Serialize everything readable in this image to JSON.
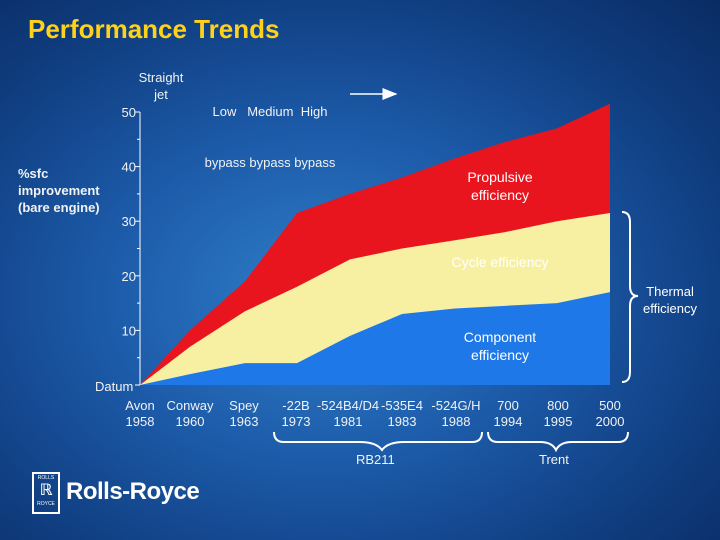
{
  "title": "Performance Trends",
  "y_axis_label": [
    "%sfc",
    "improvement",
    "(bare engine)"
  ],
  "era_labels": {
    "straight": [
      "Straight",
      "jet"
    ],
    "bypass_top": "Low   Medium  High",
    "bypass_bottom": "bypass bypass bypass"
  },
  "area_labels": {
    "propulsive": [
      "Propulsive",
      "efficiency"
    ],
    "cycle": "Cycle efficiency",
    "component": [
      "Component",
      "efficiency"
    ],
    "thermal": [
      "Thermal",
      "efficiency"
    ]
  },
  "datum_label": "Datum",
  "engine_groups": {
    "rb211": "RB211",
    "trent": "Trent"
  },
  "logo": {
    "text": "Rolls-Royce",
    "badge_text": [
      "ROLLS",
      "ROYCE"
    ]
  },
  "chart_data": {
    "type": "area",
    "title": "Performance Trends",
    "ylabel": "%sfc improvement (bare engine)",
    "ylim": [
      0,
      50
    ],
    "yticks": [
      10,
      20,
      30,
      40,
      50
    ],
    "stacked": true,
    "categories": [
      {
        "engine": "Avon",
        "year": "1958"
      },
      {
        "engine": "Conway",
        "year": "1960"
      },
      {
        "engine": "Spey",
        "year": "1963"
      },
      {
        "engine": "-22B",
        "year": "1973"
      },
      {
        "engine": "-524B4/D4",
        "year": "1981"
      },
      {
        "engine": "-535E4",
        "year": "1983"
      },
      {
        "engine": "-524G/H",
        "year": "1988"
      },
      {
        "engine": "700",
        "year": "1994"
      },
      {
        "engine": "800",
        "year": "1995"
      },
      {
        "engine": "500",
        "year": "2000"
      }
    ],
    "series": [
      {
        "name": "Component efficiency",
        "color": "#1e78e8",
        "values": [
          0,
          2,
          4,
          4,
          9,
          13,
          14,
          14.5,
          15,
          17
        ]
      },
      {
        "name": "Cycle efficiency",
        "color": "#f7f0a2",
        "values": [
          0,
          7,
          13.5,
          18,
          23,
          25,
          26.5,
          28,
          30,
          31.5
        ]
      },
      {
        "name": "Propulsive efficiency",
        "color": "#e8141e",
        "values": [
          0,
          10,
          19,
          31.5,
          35,
          38,
          41.5,
          44.5,
          47,
          51.5
        ]
      }
    ]
  }
}
